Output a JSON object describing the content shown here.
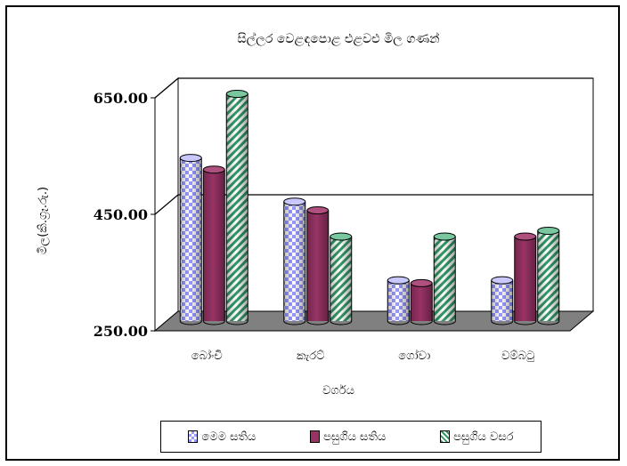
{
  "chart_data": {
    "type": "bar",
    "title": "සිල්ලර වෙළඳපොළ එළවළු මිල ගණන්",
    "xlabel": "වර්ගය",
    "ylabel": "මිල(කි.ග්‍රෑ.රු.)",
    "categories": [
      "බෝංචි",
      "කැරට්",
      "ගෝවා",
      "වම්බටු"
    ],
    "yticks": [
      "250.00",
      "450.00",
      "650.00"
    ],
    "ylim": [
      250,
      650
    ],
    "grid": true,
    "three_d": true,
    "legend_position": "bottom",
    "series": [
      {
        "name": "මෙම සතිය",
        "values": [
          530,
          455,
          320,
          320
        ],
        "color": "#9999ff",
        "pattern": "diamond-check"
      },
      {
        "name": "පසුගිය සතිය",
        "values": [
          510,
          440,
          315,
          395
        ],
        "color": "#993366",
        "pattern": "solid"
      },
      {
        "name": "පසුගිය වසර",
        "values": [
          640,
          395,
          395,
          405
        ],
        "color": "#339966",
        "pattern": "diagonal-stripes"
      }
    ]
  }
}
